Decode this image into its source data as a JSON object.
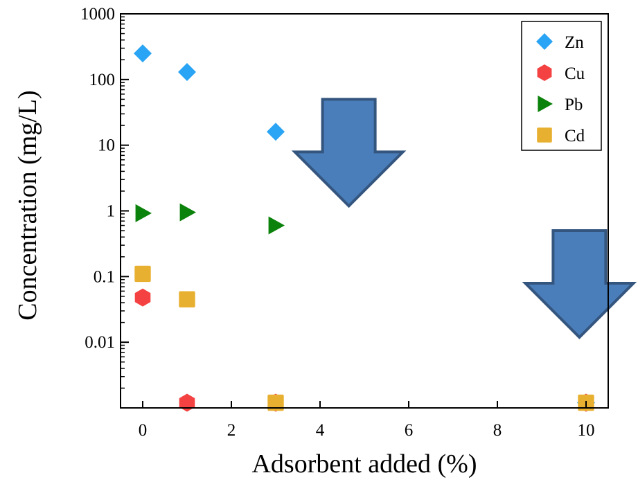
{
  "chart_data": {
    "type": "scatter",
    "title": "",
    "xlabel": "Adsorbent added (%)",
    "ylabel": "Concentration (mg/L)",
    "xlim": [
      -0.5,
      10.5
    ],
    "ylim": [
      0.001,
      1000
    ],
    "yscale": "log",
    "xticks": [
      0,
      2,
      4,
      6,
      8,
      10
    ],
    "xtick_labels": [
      "0",
      "2",
      "4",
      "6",
      "8",
      "10"
    ],
    "yticks": [
      0.01,
      0.1,
      1,
      10,
      100,
      1000
    ],
    "ytick_labels": [
      "0.01",
      "0.1",
      "1",
      "10",
      "100",
      "1000"
    ],
    "grid": false,
    "legend_position": "top-right",
    "series": [
      {
        "name": "Zn",
        "marker": "diamond",
        "color": "#2aa4f4",
        "points": [
          [
            0,
            250
          ],
          [
            1,
            130
          ],
          [
            3,
            16
          ],
          [
            10,
            0.0012
          ]
        ]
      },
      {
        "name": "Cu",
        "marker": "hexagon",
        "color": "#f44242",
        "points": [
          [
            0,
            0.048
          ],
          [
            1,
            0.0012
          ],
          [
            3,
            0.0012
          ],
          [
            10,
            0.0012
          ]
        ]
      },
      {
        "name": "Pb",
        "marker": "triangle-right",
        "color": "#0b820b",
        "points": [
          [
            0,
            0.92
          ],
          [
            1,
            0.95
          ],
          [
            3,
            0.6
          ]
        ]
      },
      {
        "name": "Cd",
        "marker": "square",
        "color": "#e8b030",
        "points": [
          [
            0,
            0.11
          ],
          [
            1,
            0.045
          ],
          [
            3,
            0.0012
          ],
          [
            10,
            0.0012
          ]
        ]
      }
    ],
    "annotations": [
      {
        "type": "down-arrow",
        "x": 4.65,
        "y": 50,
        "fill": "#4a7ebb",
        "stroke": "#34557e"
      },
      {
        "type": "down-arrow",
        "x": 9.85,
        "y": 0.5,
        "fill": "#4a7ebb",
        "stroke": "#34557e"
      }
    ]
  }
}
